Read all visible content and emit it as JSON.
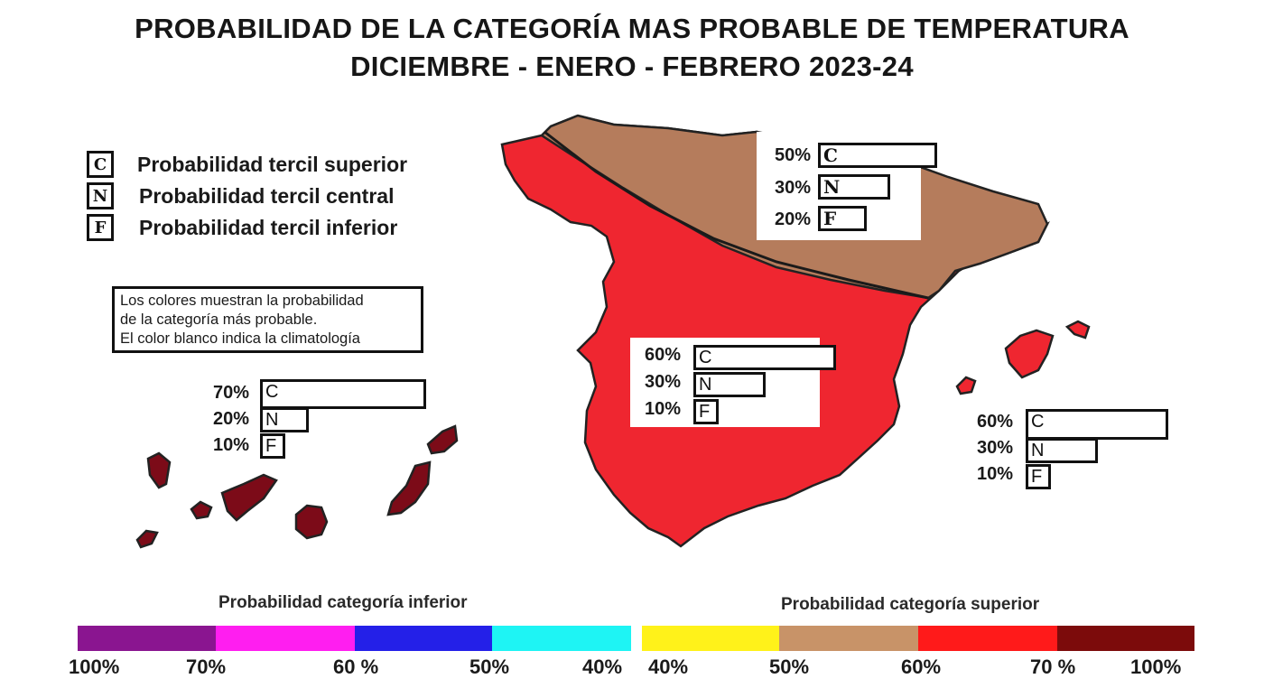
{
  "title": {
    "line1": "PROBABILIDAD DE LA CATEGORÍA MAS PROBABLE DE TEMPERATURA",
    "line2": "DICIEMBRE - ENERO - FEBRERO 2023-24"
  },
  "legend": [
    {
      "letter": "C",
      "text": "Probabilidad  tercil superior"
    },
    {
      "letter": "N",
      "text": "Probabilidad  tercil central"
    },
    {
      "letter": "F",
      "text": "Probabilidad  tercil inferior"
    }
  ],
  "note": [
    "Los colores muestran la probabilidad",
    "de la categoría más probable.",
    "El color blanco indica la climatología"
  ],
  "regions": {
    "north": {
      "fill": "#b57c5c",
      "C": "50%",
      "N": "30%",
      "F": "20%",
      "pC": 50,
      "pN": 30,
      "pF": 20
    },
    "peninsula": {
      "fill": "#ef2630",
      "C": "60%",
      "N": "30%",
      "F": "10%",
      "pC": 60,
      "pN": 30,
      "pF": 10
    },
    "baleares": {
      "fill": "#ef2630",
      "C": "60%",
      "N": "30%",
      "F": "10%",
      "pC": 60,
      "pN": 30,
      "pF": 10
    },
    "canarias": {
      "fill": "#7c0b18",
      "C": "70%",
      "N": "20%",
      "F": "10%",
      "pC": 70,
      "pN": 20,
      "pF": 10
    }
  },
  "letters": {
    "C": "C",
    "N": "N",
    "F": "F"
  },
  "scale": {
    "inferior_title": "Probabilidad categoría inferior",
    "superior_title": "Probabilidad categoría superior",
    "inferior_colors": [
      "#8a1590",
      "#ff1ef0",
      "#2420e8",
      "#1ef4f4"
    ],
    "superior_colors": [
      "#fff21a",
      "#c89368",
      "#ff1a1a",
      "#7c0b0b"
    ],
    "inferior_ticks": [
      "100%",
      "70%",
      "60 %",
      "50%",
      "40%"
    ],
    "superior_ticks": [
      "40%",
      "50%",
      "60%",
      "70 %",
      "100%"
    ]
  }
}
